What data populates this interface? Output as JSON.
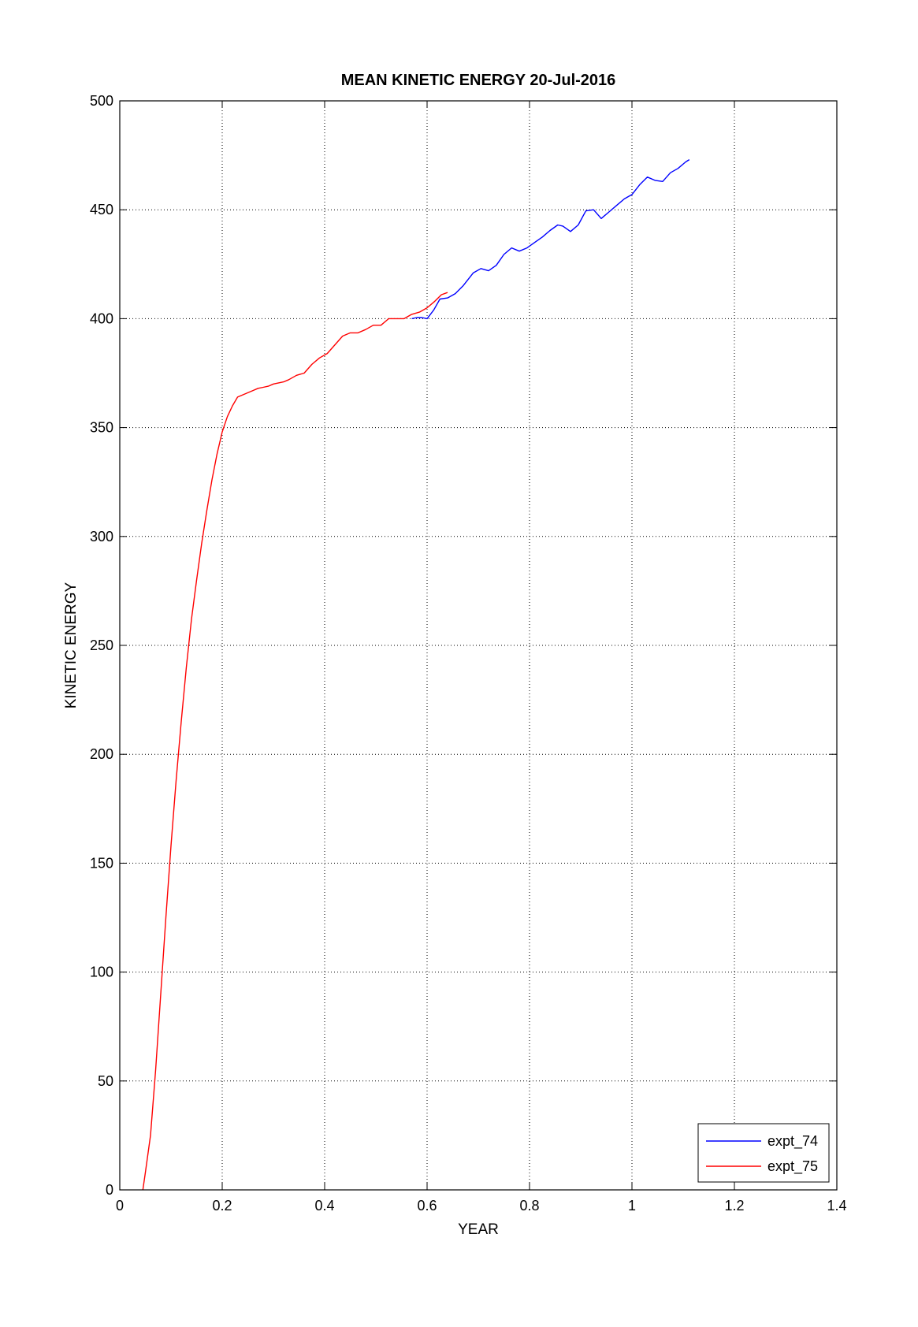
{
  "chart_data": {
    "type": "line",
    "title": "MEAN KINETIC ENERGY 20-Jul-2016",
    "xlabel": "YEAR",
    "ylabel": "KINETIC ENERGY",
    "xlim": [
      0,
      1.4
    ],
    "ylim": [
      0,
      500
    ],
    "xticks": [
      0,
      0.2,
      0.4,
      0.6,
      0.8,
      1,
      1.2,
      1.4
    ],
    "xtick_labels": [
      "0",
      "0.2",
      "0.4",
      "0.6",
      "0.8",
      "1",
      "1.2",
      "1.4"
    ],
    "yticks": [
      0,
      50,
      100,
      150,
      200,
      250,
      300,
      350,
      400,
      450,
      500
    ],
    "ytick_labels": [
      "0",
      "50",
      "100",
      "150",
      "200",
      "250",
      "300",
      "350",
      "400",
      "450",
      "500"
    ],
    "grid": true,
    "legend_position": "bottom-right",
    "series": [
      {
        "name": "expt_74",
        "color": "#0000ff",
        "x": [
          0.57,
          0.58,
          0.59,
          0.6,
          0.613,
          0.625,
          0.64,
          0.655,
          0.67,
          0.69,
          0.705,
          0.72,
          0.735,
          0.75,
          0.765,
          0.78,
          0.795,
          0.81,
          0.825,
          0.84,
          0.855,
          0.865,
          0.88,
          0.895,
          0.91,
          0.925,
          0.94,
          0.955,
          0.97,
          0.985,
          1.0,
          1.015,
          1.03,
          1.045,
          1.06,
          1.075,
          1.09,
          1.105,
          1.112
        ],
        "y": [
          400,
          400.5,
          400.5,
          400,
          404,
          409,
          409.5,
          411.5,
          415,
          421,
          423,
          422,
          424.5,
          429.5,
          432.5,
          431,
          432.5,
          435,
          437.5,
          440.5,
          443,
          442.5,
          440,
          443,
          449.5,
          450,
          446,
          449,
          452,
          455,
          457,
          461.5,
          465,
          463.5,
          463,
          467,
          469,
          472,
          473
        ]
      },
      {
        "name": "expt_75",
        "color": "#ff0000",
        "x": [
          0.045,
          0.05,
          0.06,
          0.07,
          0.08,
          0.09,
          0.1,
          0.11,
          0.12,
          0.13,
          0.14,
          0.15,
          0.16,
          0.17,
          0.18,
          0.19,
          0.2,
          0.21,
          0.22,
          0.23,
          0.24,
          0.25,
          0.26,
          0.27,
          0.28,
          0.29,
          0.3,
          0.31,
          0.32,
          0.33,
          0.345,
          0.36,
          0.375,
          0.39,
          0.405,
          0.42,
          0.435,
          0.45,
          0.465,
          0.48,
          0.495,
          0.51,
          0.525,
          0.54,
          0.555,
          0.57,
          0.585,
          0.6,
          0.615,
          0.628,
          0.64
        ],
        "y": [
          0,
          8,
          25,
          55,
          90,
          125,
          158,
          188,
          215,
          240,
          262,
          280,
          297,
          312,
          326,
          338,
          348,
          355,
          360,
          364,
          365,
          366,
          367,
          368,
          368.5,
          369,
          370,
          370.5,
          371,
          372,
          374,
          375,
          379,
          382,
          384,
          388,
          392,
          393.5,
          393.5,
          395,
          397,
          397,
          400,
          400,
          400,
          402,
          403,
          405,
          408,
          411,
          412
        ]
      }
    ]
  }
}
